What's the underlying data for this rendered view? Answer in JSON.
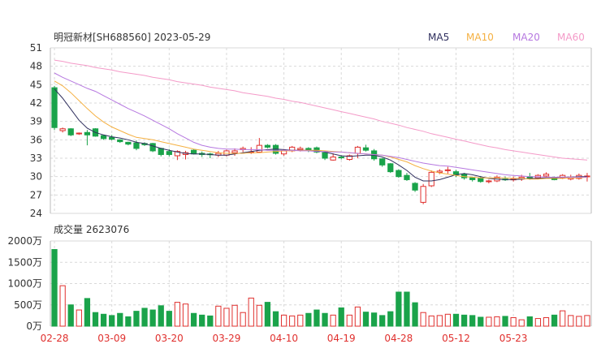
{
  "chart_data": {
    "type": "candlestick",
    "title": "明冠新材[SH688560] 2023-05-29",
    "legend": [
      {
        "name": "MA5",
        "color": "#2f2f5e"
      },
      {
        "name": "MA10",
        "color": "#f5b041"
      },
      {
        "name": "MA20",
        "color": "#b678e0"
      },
      {
        "name": "MA60",
        "color": "#f49ac8"
      }
    ],
    "price_axis": {
      "min": 24,
      "max": 51,
      "ticks": [
        51,
        48,
        45,
        42,
        39,
        36,
        33,
        30,
        27,
        24
      ]
    },
    "volume_label": "成交量 2623076",
    "volume_axis": {
      "max": 2000,
      "ticks": [
        "2000万",
        "1500万",
        "1000万",
        "500万",
        "0万"
      ]
    },
    "x_labels": [
      {
        "text": "02-28",
        "index": 0
      },
      {
        "text": "03-09",
        "index": 7
      },
      {
        "text": "03-20",
        "index": 14
      },
      {
        "text": "03-29",
        "index": 21
      },
      {
        "text": "04-10",
        "index": 28
      },
      {
        "text": "04-19",
        "index": 35
      },
      {
        "text": "04-28",
        "index": 42
      },
      {
        "text": "05-12",
        "index": 49
      },
      {
        "text": "05-23",
        "index": 56
      }
    ],
    "colors": {
      "up": "#e0302e",
      "down": "#1aa34a",
      "grid": "#d9d9d9"
    },
    "ohlc": [
      [
        44.5,
        44.8,
        37.6,
        38.0
      ],
      [
        37.5,
        38.0,
        37.2,
        37.8
      ],
      [
        37.8,
        37.9,
        36.6,
        36.8
      ],
      [
        37.0,
        37.2,
        36.8,
        37.1
      ],
      [
        37.2,
        37.6,
        35.1,
        36.8
      ],
      [
        37.8,
        37.9,
        36.5,
        36.6
      ],
      [
        36.7,
        36.8,
        36.0,
        36.2
      ],
      [
        36.4,
        36.8,
        35.9,
        36.1
      ],
      [
        36.0,
        36.1,
        35.5,
        35.7
      ],
      [
        35.6,
        35.7,
        35.1,
        35.3
      ],
      [
        35.5,
        35.9,
        34.3,
        34.6
      ],
      [
        35.4,
        35.6,
        35.0,
        35.2
      ],
      [
        35.4,
        35.5,
        34.0,
        34.2
      ],
      [
        34.6,
        34.7,
        33.3,
        33.6
      ],
      [
        34.1,
        34.5,
        33.3,
        33.6
      ],
      [
        33.4,
        34.3,
        32.7,
        34.1
      ],
      [
        33.6,
        34.2,
        32.8,
        33.9
      ],
      [
        34.3,
        34.5,
        33.6,
        33.7
      ],
      [
        33.8,
        34.1,
        33.2,
        33.6
      ],
      [
        33.7,
        33.9,
        33.0,
        33.6
      ],
      [
        33.5,
        34.2,
        33.2,
        33.8
      ],
      [
        33.5,
        34.4,
        33.3,
        34.2
      ],
      [
        33.9,
        34.6,
        33.4,
        34.2
      ],
      [
        34.4,
        34.9,
        34.0,
        34.6
      ],
      [
        33.9,
        34.8,
        33.7,
        34.0
      ],
      [
        34.0,
        36.3,
        33.9,
        35.1
      ],
      [
        35.1,
        35.3,
        34.6,
        34.8
      ],
      [
        35.1,
        35.3,
        33.6,
        33.8
      ],
      [
        33.7,
        34.5,
        33.4,
        34.2
      ],
      [
        34.2,
        35.0,
        34.0,
        34.8
      ],
      [
        34.4,
        34.9,
        34.1,
        34.6
      ],
      [
        34.6,
        34.8,
        34.0,
        34.3
      ],
      [
        34.7,
        34.9,
        33.8,
        34.0
      ],
      [
        33.9,
        34.0,
        32.7,
        33.0
      ],
      [
        32.7,
        33.8,
        32.6,
        33.2
      ],
      [
        33.2,
        33.5,
        32.8,
        33.1
      ],
      [
        32.8,
        33.6,
        32.6,
        33.4
      ],
      [
        33.8,
        35.0,
        33.0,
        34.8
      ],
      [
        34.7,
        35.2,
        34.1,
        34.3
      ],
      [
        34.2,
        34.5,
        32.6,
        32.9
      ],
      [
        32.9,
        33.0,
        31.6,
        31.9
      ],
      [
        32.1,
        32.2,
        30.6,
        30.8
      ],
      [
        31.0,
        31.2,
        29.8,
        30.0
      ],
      [
        30.2,
        30.6,
        29.3,
        29.5
      ],
      [
        28.9,
        29.1,
        27.5,
        27.8
      ],
      [
        25.8,
        28.8,
        25.5,
        28.4
      ],
      [
        28.5,
        31.0,
        28.3,
        30.7
      ],
      [
        30.7,
        31.2,
        30.4,
        30.9
      ],
      [
        31.0,
        31.6,
        30.5,
        31.1
      ],
      [
        30.8,
        31.1,
        29.9,
        30.3
      ],
      [
        30.4,
        30.6,
        29.5,
        29.8
      ],
      [
        29.8,
        30.0,
        29.2,
        29.5
      ],
      [
        29.7,
        30.1,
        29.0,
        29.2
      ],
      [
        29.2,
        29.5,
        28.9,
        29.3
      ],
      [
        29.3,
        30.2,
        29.1,
        29.9
      ],
      [
        29.6,
        30.0,
        29.3,
        29.5
      ],
      [
        29.5,
        30.0,
        29.2,
        29.6
      ],
      [
        29.6,
        30.3,
        29.3,
        29.9
      ],
      [
        30.0,
        30.6,
        29.5,
        29.7
      ],
      [
        29.8,
        30.4,
        29.6,
        30.2
      ],
      [
        30.1,
        30.7,
        29.7,
        30.4
      ],
      [
        29.8,
        30.0,
        29.4,
        29.5
      ],
      [
        29.8,
        30.4,
        29.6,
        30.2
      ],
      [
        29.6,
        30.3,
        29.4,
        29.9
      ],
      [
        29.7,
        30.5,
        29.5,
        30.2
      ],
      [
        30.0,
        30.6,
        29.2,
        30.1
      ]
    ],
    "volume": [
      1800,
      950,
      500,
      380,
      650,
      320,
      280,
      250,
      300,
      220,
      350,
      420,
      380,
      480,
      350,
      560,
      520,
      300,
      260,
      240,
      470,
      420,
      490,
      320,
      660,
      490,
      560,
      340,
      260,
      240,
      260,
      300,
      380,
      300,
      260,
      430,
      260,
      450,
      330,
      310,
      250,
      340,
      800,
      800,
      550,
      320,
      240,
      250,
      280,
      280,
      260,
      250,
      210,
      210,
      220,
      230,
      200,
      150,
      220,
      180,
      200,
      260,
      360,
      250,
      230,
      250
    ],
    "ma5": [
      44.3,
      42.8,
      41.0,
      39.2,
      37.9,
      37.2,
      36.8,
      36.5,
      36.3,
      36.0,
      35.6,
      35.4,
      35.0,
      34.6,
      34.3,
      34.0,
      33.8,
      33.7,
      33.7,
      33.6,
      33.5,
      33.5,
      33.7,
      33.9,
      34.1,
      34.3,
      34.4,
      34.5,
      34.4,
      34.3,
      34.3,
      34.3,
      34.2,
      34.0,
      33.7,
      33.4,
      33.3,
      33.4,
      33.5,
      33.5,
      33.2,
      32.7,
      31.9,
      31.0,
      29.9,
      29.3,
      29.3,
      29.5,
      29.9,
      30.3,
      30.5,
      30.3,
      30.0,
      29.7,
      29.6,
      29.5,
      29.5,
      29.6,
      29.7,
      29.7,
      29.8,
      29.8,
      29.9,
      29.9,
      30.0,
      30.0
    ],
    "ma10": [
      45.6,
      44.8,
      43.7,
      42.4,
      41.1,
      39.9,
      38.9,
      38.1,
      37.5,
      36.9,
      36.4,
      36.2,
      36.0,
      35.7,
      35.4,
      35.1,
      34.8,
      34.5,
      34.3,
      34.1,
      33.9,
      33.8,
      33.8,
      33.8,
      33.9,
      33.9,
      34.0,
      34.1,
      34.2,
      34.2,
      34.3,
      34.3,
      34.3,
      34.2,
      34.1,
      34.0,
      33.9,
      33.8,
      33.7,
      33.6,
      33.5,
      33.2,
      32.8,
      32.4,
      31.8,
      31.3,
      30.9,
      30.6,
      30.4,
      30.2,
      30.0,
      29.9,
      29.8,
      29.8,
      29.8,
      29.8,
      29.7,
      29.7,
      29.6,
      29.6,
      29.7,
      29.7,
      29.7,
      29.8,
      29.8,
      29.9
    ],
    "ma20": [
      46.9,
      46.2,
      45.6,
      45.0,
      44.4,
      43.9,
      43.2,
      42.5,
      41.8,
      41.1,
      40.5,
      39.9,
      39.2,
      38.5,
      37.8,
      37.0,
      36.3,
      35.6,
      35.1,
      34.8,
      34.6,
      34.5,
      34.5,
      34.4,
      34.4,
      34.4,
      34.3,
      34.3,
      34.3,
      34.3,
      34.2,
      34.2,
      34.1,
      34.1,
      34.0,
      34.0,
      33.9,
      33.8,
      33.7,
      33.6,
      33.5,
      33.3,
      33.1,
      32.8,
      32.5,
      32.2,
      32.0,
      31.8,
      31.7,
      31.5,
      31.3,
      31.1,
      30.9,
      30.7,
      30.5,
      30.3,
      30.2,
      30.1,
      30.0,
      30.0,
      29.9,
      29.9,
      29.9,
      29.9,
      29.9,
      29.9
    ],
    "ma60": [
      49.0,
      48.8,
      48.5,
      48.3,
      48.1,
      47.8,
      47.6,
      47.4,
      47.1,
      46.9,
      46.7,
      46.5,
      46.2,
      46.0,
      45.8,
      45.5,
      45.3,
      45.1,
      44.9,
      44.6,
      44.4,
      44.2,
      44.0,
      43.7,
      43.5,
      43.3,
      43.1,
      42.8,
      42.6,
      42.3,
      42.1,
      41.8,
      41.5,
      41.2,
      40.9,
      40.6,
      40.3,
      40.0,
      39.7,
      39.4,
      39.0,
      38.7,
      38.4,
      38.0,
      37.7,
      37.4,
      37.0,
      36.7,
      36.4,
      36.1,
      35.8,
      35.5,
      35.2,
      34.9,
      34.7,
      34.4,
      34.2,
      34.0,
      33.8,
      33.6,
      33.4,
      33.2,
      33.0,
      32.9,
      32.8,
      32.7
    ]
  }
}
